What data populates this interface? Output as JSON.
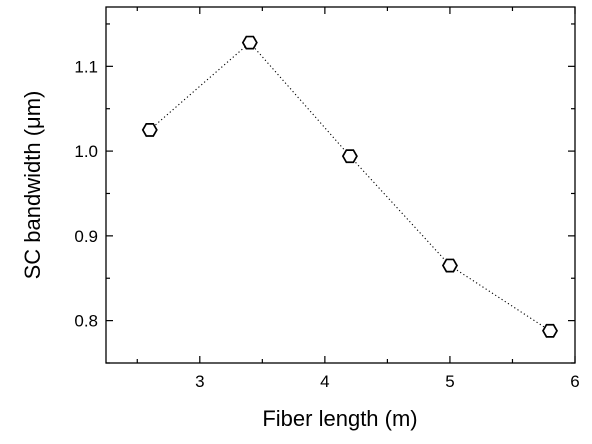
{
  "chart_data": {
    "type": "line",
    "title": "",
    "xlabel": "Fiber length (m)",
    "ylabel": "SC bandwidth (μm)",
    "xlim": [
      2.25,
      6.0
    ],
    "ylim": [
      0.75,
      1.17
    ],
    "x_ticks": [
      3,
      4,
      5,
      6
    ],
    "x_tick_labels": [
      "3",
      "4",
      "5",
      "6"
    ],
    "x_minor_ticks": [
      2.5,
      3.5,
      4.5,
      5.5
    ],
    "y_ticks": [
      0.8,
      0.9,
      1.0,
      1.1
    ],
    "y_tick_labels": [
      "0.8",
      "0.9",
      "1.0",
      "1.1"
    ],
    "y_minor_ticks": [
      0.75,
      0.85,
      0.95,
      1.05,
      1.15
    ],
    "grid": false,
    "legend": "none",
    "series": [
      {
        "x": [
          2.6,
          3.4,
          4.2,
          5.0,
          5.8
        ],
        "values": [
          1.025,
          1.128,
          0.994,
          0.865,
          0.788
        ],
        "marker": "hexagon-open",
        "line_style": "dotted",
        "color": "#000000"
      }
    ]
  }
}
